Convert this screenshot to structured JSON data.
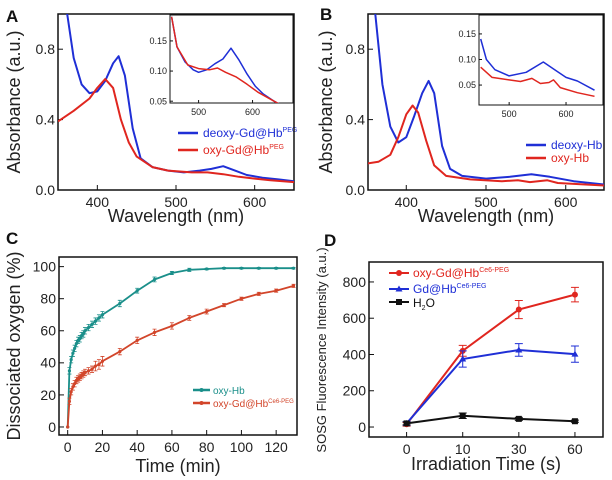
{
  "colors": {
    "blue": "#1f2fd6",
    "red": "#e0261f",
    "teal": "#1a8f8a",
    "orange": "#d2452a",
    "black": "#111111"
  },
  "chart_data": [
    {
      "panel": "A",
      "type": "line",
      "xlabel": "Wavelength (nm)",
      "ylabel": "Absorbance (a.u.)",
      "xlim": [
        350,
        650
      ],
      "ylim": [
        0,
        1
      ],
      "xticks": [
        "400",
        "500",
        "600"
      ],
      "yticks": [
        "0.0",
        "0.4",
        "0.8"
      ],
      "series": [
        {
          "name": "deoxy-Gd@Hb",
          "sup": "PEG",
          "color": "blue",
          "x": [
            360,
            370,
            380,
            390,
            400,
            410,
            420,
            427,
            435,
            445,
            455,
            470,
            490,
            510,
            530,
            545,
            560,
            575,
            590,
            610,
            630,
            650
          ],
          "y": [
            1.05,
            0.75,
            0.6,
            0.55,
            0.56,
            0.62,
            0.72,
            0.76,
            0.65,
            0.35,
            0.18,
            0.13,
            0.11,
            0.1,
            0.11,
            0.12,
            0.135,
            0.11,
            0.085,
            0.07,
            0.06,
            0.05
          ]
        },
        {
          "name": "oxy-Gd@Hb",
          "sup": "PEG",
          "color": "red",
          "x": [
            350,
            370,
            390,
            400,
            410,
            420,
            430,
            440,
            450,
            470,
            490,
            520,
            540,
            560,
            580,
            600,
            620,
            650
          ],
          "y": [
            0.39,
            0.45,
            0.52,
            0.58,
            0.63,
            0.58,
            0.4,
            0.27,
            0.19,
            0.13,
            0.11,
            0.1,
            0.1,
            0.09,
            0.075,
            0.065,
            0.055,
            0.045
          ]
        }
      ],
      "inset": {
        "xlim": [
          447,
          675
        ],
        "ylim": [
          0.047,
          0.193
        ],
        "xticks": [
          "500",
          "600"
        ],
        "yticks": [
          "0.05",
          "0.10",
          "0.15"
        ],
        "series": [
          {
            "color": "blue",
            "x": [
              450,
              460,
              475,
              490,
              500,
              515,
              530,
              545,
              560,
              575,
              590,
              605,
              620,
              640,
              650
            ],
            "y": [
              0.19,
              0.14,
              0.115,
              0.102,
              0.098,
              0.102,
              0.112,
              0.12,
              0.138,
              0.118,
              0.095,
              0.075,
              0.062,
              0.05,
              0.045
            ]
          },
          {
            "color": "red",
            "x": [
              450,
              460,
              480,
              500,
              520,
              535,
              550,
              570,
              590,
              610,
              630,
              650
            ],
            "y": [
              0.19,
              0.14,
              0.11,
              0.104,
              0.102,
              0.105,
              0.098,
              0.09,
              0.078,
              0.065,
              0.055,
              0.045
            ]
          }
        ]
      }
    },
    {
      "panel": "B",
      "type": "line",
      "xlabel": "Wavelength (nm)",
      "ylabel": "Absorbance (a.u.)",
      "xlim": [
        352,
        648
      ],
      "ylim": [
        0,
        1
      ],
      "xticks": [
        "400",
        "500",
        "600"
      ],
      "yticks": [
        "0.0",
        "0.4",
        "0.8"
      ],
      "series": [
        {
          "name": "deoxy-Hb",
          "color": "blue",
          "x": [
            360,
            370,
            380,
            390,
            400,
            410,
            420,
            428,
            435,
            445,
            455,
            470,
            500,
            530,
            557,
            580,
            610,
            650
          ],
          "y": [
            1.05,
            0.6,
            0.36,
            0.27,
            0.3,
            0.42,
            0.55,
            0.62,
            0.55,
            0.25,
            0.12,
            0.08,
            0.065,
            0.075,
            0.09,
            0.075,
            0.05,
            0.03
          ]
        },
        {
          "name": "oxy-Hb",
          "color": "red",
          "x": [
            350,
            365,
            380,
            390,
            400,
            408,
            415,
            425,
            435,
            450,
            480,
            520,
            540,
            555,
            577,
            590,
            650
          ],
          "y": [
            0.15,
            0.16,
            0.2,
            0.3,
            0.43,
            0.48,
            0.44,
            0.28,
            0.14,
            0.08,
            0.06,
            0.05,
            0.055,
            0.045,
            0.055,
            0.04,
            0.025
          ]
        }
      ],
      "inset": {
        "xlim": [
          447,
          665
        ],
        "ylim": [
          0.011,
          0.187
        ],
        "xticks": [
          "500",
          "600"
        ],
        "yticks": [
          "0.05",
          "0.10",
          "0.15"
        ],
        "series": [
          {
            "color": "blue",
            "x": [
              450,
              460,
              475,
              500,
              530,
              560,
              580,
              600,
              620,
              650
            ],
            "y": [
              0.14,
              0.1,
              0.08,
              0.068,
              0.075,
              0.095,
              0.08,
              0.065,
              0.058,
              0.04
            ]
          },
          {
            "color": "red",
            "x": [
              450,
              470,
              500,
              520,
              540,
              555,
              570,
              578,
              590,
              620,
              650
            ],
            "y": [
              0.085,
              0.065,
              0.06,
              0.057,
              0.063,
              0.053,
              0.055,
              0.06,
              0.045,
              0.035,
              0.028
            ]
          }
        ]
      }
    },
    {
      "panel": "C",
      "type": "line",
      "xlabel": "Time (min)",
      "ylabel": "Dissociated oxygen (%)",
      "xlim": [
        -5,
        132
      ],
      "ylim": [
        -5,
        106
      ],
      "xticks": [
        "0",
        "20",
        "40",
        "60",
        "80",
        "100",
        "120"
      ],
      "yticks": [
        "0",
        "20",
        "40",
        "60",
        "80",
        "100"
      ],
      "series": [
        {
          "name": "oxy-Hb",
          "color": "teal",
          "x": [
            0,
            1,
            2,
            3,
            4,
            5,
            6,
            7,
            8,
            9,
            10,
            12,
            14,
            16,
            18,
            20,
            30,
            40,
            50,
            60,
            70,
            80,
            90,
            100,
            110,
            120,
            130
          ],
          "y": [
            0,
            35,
            42,
            46,
            49,
            52,
            54,
            55,
            57,
            58,
            60,
            62,
            64,
            66,
            68,
            70,
            77,
            85,
            92,
            96,
            98,
            98.5,
            99,
            99,
            99,
            99,
            99
          ],
          "err": [
            0,
            2,
            2,
            2,
            2,
            2,
            2,
            2,
            2,
            2,
            2,
            2,
            2,
            2,
            2,
            2,
            2,
            1.5,
            1.5,
            1,
            1,
            0.5,
            0.5,
            0.5,
            0.5,
            0.5,
            0.5
          ]
        },
        {
          "name": "oxy-Gd@Hb",
          "sup": "Ce6-PEG",
          "color": "orange",
          "x": [
            0,
            1,
            2,
            3,
            4,
            5,
            6,
            7,
            8,
            9,
            10,
            12,
            14,
            16,
            18,
            20,
            30,
            40,
            50,
            60,
            70,
            80,
            90,
            100,
            110,
            120,
            130
          ],
          "y": [
            0,
            16,
            22,
            25,
            27,
            29,
            30,
            31,
            32,
            33,
            34,
            35,
            36,
            38,
            39,
            41,
            47,
            54,
            59,
            63,
            68,
            72,
            76,
            80,
            83,
            85,
            88
          ],
          "err": [
            0,
            2,
            2,
            2,
            2,
            2,
            2,
            2,
            2,
            2,
            2,
            2,
            2,
            3,
            3,
            3,
            2,
            2,
            2,
            2,
            1.5,
            1.5,
            1,
            1,
            1,
            1,
            1
          ]
        }
      ]
    },
    {
      "panel": "D",
      "type": "line",
      "xlabel": "Irradiation Time (s)",
      "ylabel": "SOSG Fluorescence Intensity (a.u.)",
      "categories": [
        "0",
        "10",
        "30",
        "60"
      ],
      "ylim": [
        -55,
        910
      ],
      "yticks": [
        "0",
        "200",
        "400",
        "600",
        "800"
      ],
      "series": [
        {
          "name": "oxy-Gd@Hb",
          "sup": "Ce6-PEG",
          "color": "red",
          "marker": "circle",
          "values": [
            15,
            420,
            648,
            730
          ],
          "err": [
            10,
            30,
            50,
            40
          ]
        },
        {
          "name": "Gd@Hb",
          "sup": "Ce6-PEG",
          "color": "blue",
          "marker": "triangle",
          "values": [
            20,
            375,
            425,
            402
          ],
          "err": [
            10,
            45,
            35,
            45
          ]
        },
        {
          "name": "H",
          "sub": "2",
          "tail": "O",
          "color": "black",
          "marker": "square",
          "values": [
            20,
            62,
            45,
            32
          ],
          "err": [
            8,
            15,
            8,
            6
          ]
        }
      ]
    }
  ]
}
